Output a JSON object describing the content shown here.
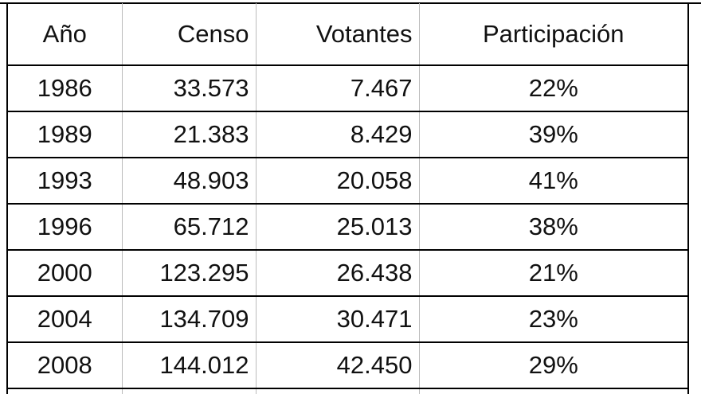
{
  "table": {
    "header": [
      "Año",
      "Censo",
      "Votantes",
      "Participación"
    ],
    "rows": [
      [
        "1986",
        "33.573",
        "7.467",
        "22%"
      ],
      [
        "1989",
        "21.383",
        "8.429",
        "39%"
      ],
      [
        "1993",
        "48.903",
        "20.058",
        "41%"
      ],
      [
        "1996",
        "65.712",
        "25.013",
        "38%"
      ],
      [
        "2000",
        "123.295",
        "26.438",
        "21%"
      ],
      [
        "2004",
        "134.709",
        "30.471",
        "23%"
      ],
      [
        "2008",
        "144.012",
        "42.450",
        "29%"
      ]
    ]
  }
}
